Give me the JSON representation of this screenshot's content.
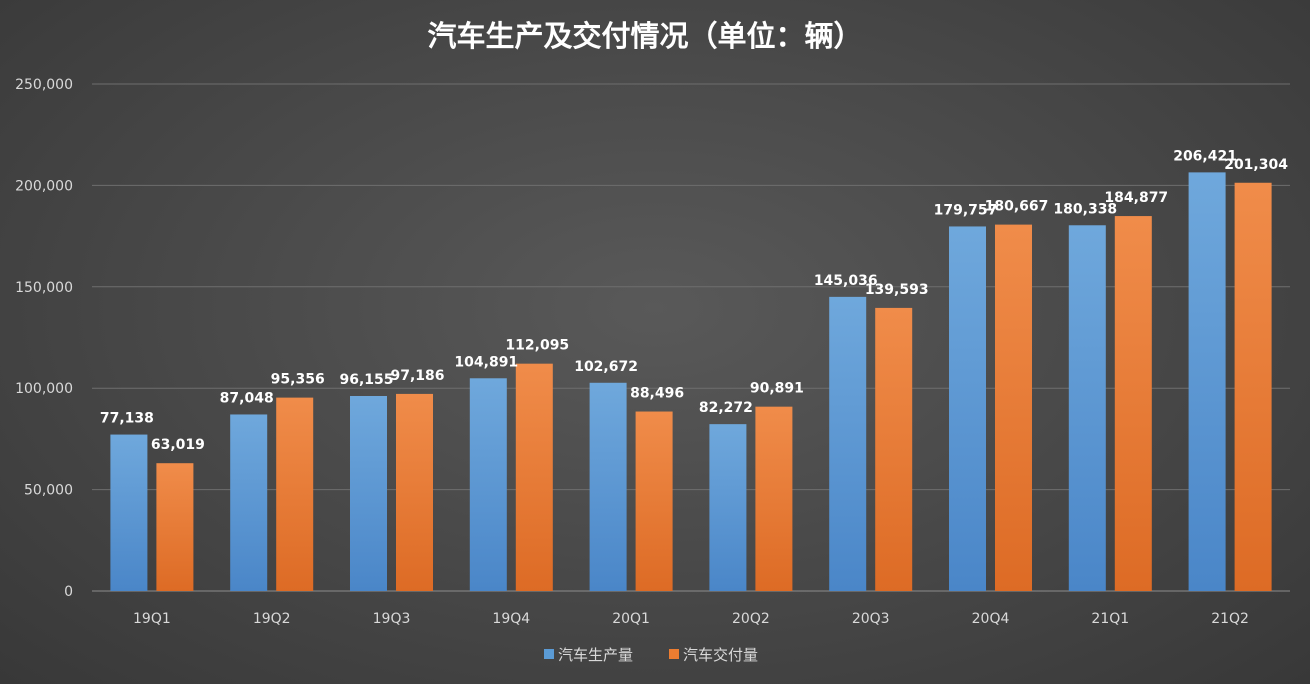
{
  "chart_data": {
    "type": "bar",
    "title": "汽车生产及交付情况（单位：辆）",
    "categories": [
      "19Q1",
      "19Q2",
      "19Q3",
      "19Q4",
      "20Q1",
      "20Q2",
      "20Q3",
      "20Q4",
      "21Q1",
      "21Q2"
    ],
    "series": [
      {
        "name": "汽车生产量",
        "color": "#5b9bd5",
        "values": [
          77138,
          87048,
          96155,
          104891,
          102672,
          82272,
          145036,
          179757,
          180338,
          206421
        ],
        "labels": [
          "77,138",
          "87,048",
          "96,155",
          "104,891",
          "102,672",
          "82,272",
          "145,036",
          "179,757",
          "180,338",
          "206,421"
        ]
      },
      {
        "name": "汽车交付量",
        "color": "#ed7d31",
        "values": [
          63019,
          95356,
          97186,
          112095,
          88496,
          90891,
          139593,
          180667,
          184877,
          201304
        ],
        "labels": [
          "63,019",
          "95,356",
          "97,186",
          "112,095",
          "88,496",
          "90,891",
          "139,593",
          "180,667",
          "184,877",
          "201,304"
        ]
      }
    ],
    "ylim": [
      0,
      250000
    ],
    "yticks": [
      0,
      50000,
      100000,
      150000,
      200000,
      250000
    ],
    "ytick_labels": [
      "0",
      "50,000",
      "100,000",
      "150,000",
      "200,000",
      "250,000"
    ],
    "xlabel": "",
    "ylabel": "",
    "grid": true,
    "legend_position": "bottom"
  }
}
